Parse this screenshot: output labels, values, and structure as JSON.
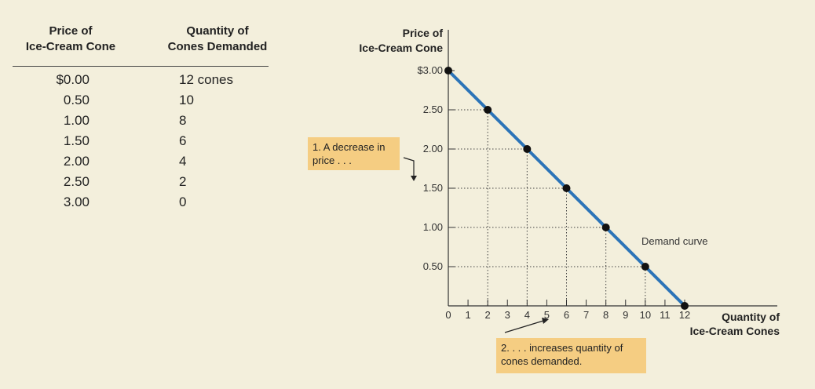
{
  "table": {
    "headers": {
      "price": [
        "Price of",
        "Ice-Cream Cone"
      ],
      "quantity": [
        "Quantity of",
        "Cones Demanded"
      ]
    },
    "rows": [
      {
        "price": "$0.00",
        "quantity": "12 cones"
      },
      {
        "price": "0.50",
        "quantity": "10"
      },
      {
        "price": "1.00",
        "quantity": "8"
      },
      {
        "price": "1.50",
        "quantity": "6"
      },
      {
        "price": "2.00",
        "quantity": "4"
      },
      {
        "price": "2.50",
        "quantity": "2"
      },
      {
        "price": "3.00",
        "quantity": "0"
      }
    ]
  },
  "chart_data": {
    "type": "line",
    "ylabel": [
      "Price of",
      "Ice-Cream Cone"
    ],
    "xlabel": [
      "Quantity of",
      "Ice-Cream Cones"
    ],
    "xlim": [
      0,
      12
    ],
    "ylim": [
      0,
      3
    ],
    "x_ticks": [
      0,
      1,
      2,
      3,
      4,
      5,
      6,
      7,
      8,
      9,
      10,
      11,
      12
    ],
    "y_ticks": [
      {
        "value": 0.5,
        "label": "0.50"
      },
      {
        "value": 1.0,
        "label": "1.00"
      },
      {
        "value": 1.5,
        "label": "1.50"
      },
      {
        "value": 2.0,
        "label": "2.00"
      },
      {
        "value": 2.5,
        "label": "2.50"
      },
      {
        "value": 3.0,
        "label": "$3.00"
      }
    ],
    "series": [
      {
        "name": "Demand curve",
        "color": "#2c74b8",
        "points": [
          {
            "x": 0,
            "y": 3.0
          },
          {
            "x": 2,
            "y": 2.5
          },
          {
            "x": 4,
            "y": 2.0
          },
          {
            "x": 6,
            "y": 1.5
          },
          {
            "x": 8,
            "y": 1.0
          },
          {
            "x": 10,
            "y": 0.5
          },
          {
            "x": 12,
            "y": 0.0
          }
        ]
      }
    ],
    "annotations": [
      "1. A decrease in price . . .",
      "2. . . . increases quantity of cones demanded."
    ]
  },
  "notes": {
    "decrease": [
      "1. A decrease in",
      "price  . . ."
    ],
    "increase": [
      "2. . . . increases quantity of",
      "cones demanded."
    ]
  },
  "colors": {
    "background": "#f3efdc",
    "curve": "#2c74b8",
    "note": "#f5cd82"
  }
}
